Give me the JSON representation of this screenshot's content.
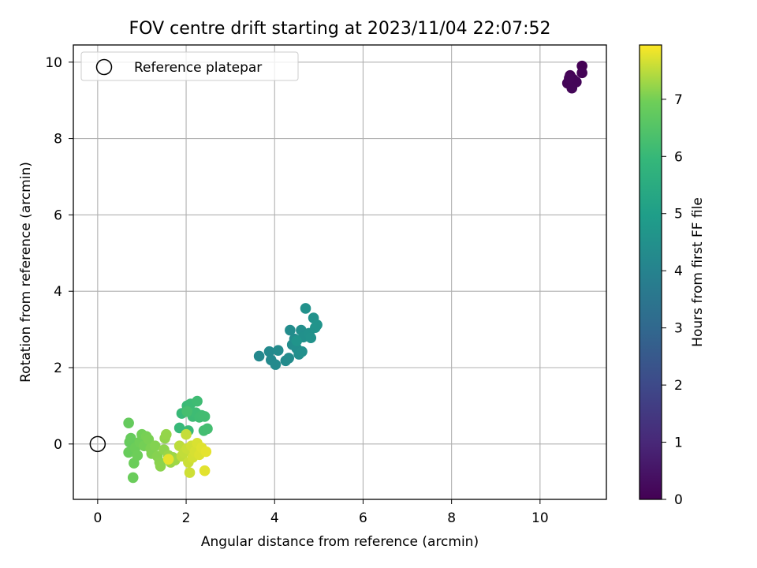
{
  "chart_data": {
    "type": "scatter",
    "title": "FOV centre drift starting at 2023/11/04 22:07:52",
    "xlabel": "Angular distance from reference (arcmin)",
    "ylabel": "Rotation from reference (arcmin)",
    "xlim": [
      -0.55,
      11.5
    ],
    "ylim": [
      -1.45,
      10.45
    ],
    "xticks": [
      "0",
      "2",
      "4",
      "6",
      "8",
      "10"
    ],
    "yticks": [
      "0",
      "2",
      "4",
      "6",
      "8",
      "10"
    ],
    "grid": true,
    "legend": {
      "placement": "top-left",
      "entries": [
        "Reference platepar"
      ]
    },
    "reference_point": {
      "x": 0,
      "y": 0
    },
    "colorbar": {
      "label": "Hours from first FF file",
      "range": [
        0,
        7.95
      ],
      "ticks": [
        "0",
        "1",
        "2",
        "3",
        "4",
        "5",
        "6",
        "7"
      ],
      "colormap": "viridis"
    },
    "series": [
      {
        "points": [
          {
            "x": 10.95,
            "y": 9.9,
            "c": 0.0
          },
          {
            "x": 10.68,
            "y": 9.65,
            "c": 0.02
          },
          {
            "x": 10.75,
            "y": 9.55,
            "c": 0.04
          },
          {
            "x": 10.95,
            "y": 9.72,
            "c": 0.06
          },
          {
            "x": 10.62,
            "y": 9.45,
            "c": 0.08
          },
          {
            "x": 10.82,
            "y": 9.48,
            "c": 0.1
          },
          {
            "x": 10.72,
            "y": 9.32,
            "c": 0.12
          },
          {
            "x": 10.66,
            "y": 9.58,
            "c": 0.14
          },
          {
            "x": 3.65,
            "y": 2.3,
            "c": 4.2
          },
          {
            "x": 3.88,
            "y": 2.42,
            "c": 4.22
          },
          {
            "x": 3.92,
            "y": 2.2,
            "c": 4.24
          },
          {
            "x": 4.02,
            "y": 2.08,
            "c": 4.26
          },
          {
            "x": 4.08,
            "y": 2.45,
            "c": 4.28
          },
          {
            "x": 4.25,
            "y": 2.18,
            "c": 4.3
          },
          {
            "x": 4.32,
            "y": 2.25,
            "c": 4.32
          },
          {
            "x": 4.35,
            "y": 2.98,
            "c": 4.34
          },
          {
            "x": 4.4,
            "y": 2.6,
            "c": 4.36
          },
          {
            "x": 4.45,
            "y": 2.75,
            "c": 4.38
          },
          {
            "x": 4.5,
            "y": 2.5,
            "c": 4.4
          },
          {
            "x": 4.55,
            "y": 2.35,
            "c": 4.42
          },
          {
            "x": 4.6,
            "y": 2.98,
            "c": 4.44
          },
          {
            "x": 4.62,
            "y": 2.42,
            "c": 4.46
          },
          {
            "x": 4.65,
            "y": 2.8,
            "c": 4.48
          },
          {
            "x": 4.7,
            "y": 3.55,
            "c": 4.5
          },
          {
            "x": 4.78,
            "y": 2.9,
            "c": 4.52
          },
          {
            "x": 4.82,
            "y": 2.78,
            "c": 4.54
          },
          {
            "x": 4.88,
            "y": 3.3,
            "c": 4.56
          },
          {
            "x": 4.92,
            "y": 3.05,
            "c": 4.58
          },
          {
            "x": 4.96,
            "y": 3.12,
            "c": 4.6
          },
          {
            "x": 4.5,
            "y": 2.7,
            "c": 4.62
          },
          {
            "x": 1.85,
            "y": 0.42,
            "c": 6.0
          },
          {
            "x": 1.9,
            "y": 0.8,
            "c": 6.02
          },
          {
            "x": 2.02,
            "y": 1.0,
            "c": 6.04
          },
          {
            "x": 2.05,
            "y": 0.35,
            "c": 6.06
          },
          {
            "x": 2.1,
            "y": 1.05,
            "c": 6.08
          },
          {
            "x": 2.15,
            "y": 0.72,
            "c": 6.1
          },
          {
            "x": 2.22,
            "y": 0.82,
            "c": 6.12
          },
          {
            "x": 2.25,
            "y": 1.12,
            "c": 6.14
          },
          {
            "x": 2.3,
            "y": 0.7,
            "c": 6.16
          },
          {
            "x": 2.35,
            "y": 0.75,
            "c": 6.18
          },
          {
            "x": 2.42,
            "y": 0.72,
            "c": 6.2
          },
          {
            "x": 2.4,
            "y": 0.35,
            "c": 6.22
          },
          {
            "x": 2.48,
            "y": 0.4,
            "c": 6.24
          },
          {
            "x": 2.02,
            "y": 0.85,
            "c": 6.26
          },
          {
            "x": 0.7,
            "y": 0.55,
            "c": 6.8
          },
          {
            "x": 0.72,
            "y": 0.05,
            "c": 6.82
          },
          {
            "x": 0.75,
            "y": 0.15,
            "c": 6.84
          },
          {
            "x": 0.7,
            "y": -0.22,
            "c": 6.86
          },
          {
            "x": 0.8,
            "y": -0.88,
            "c": 6.88
          },
          {
            "x": 0.82,
            "y": -0.5,
            "c": 6.9
          },
          {
            "x": 0.85,
            "y": -0.1,
            "c": 6.92
          },
          {
            "x": 0.9,
            "y": -0.3,
            "c": 6.94
          },
          {
            "x": 0.95,
            "y": 0.05,
            "c": 6.96
          },
          {
            "x": 1.0,
            "y": 0.25,
            "c": 6.98
          },
          {
            "x": 1.05,
            "y": -0.05,
            "c": 7.0
          },
          {
            "x": 1.1,
            "y": 0.2,
            "c": 7.02
          },
          {
            "x": 1.15,
            "y": 0.12,
            "c": 7.04
          },
          {
            "x": 1.2,
            "y": -0.12,
            "c": 7.06
          },
          {
            "x": 1.22,
            "y": -0.25,
            "c": 7.08
          },
          {
            "x": 1.3,
            "y": -0.05,
            "c": 7.1
          },
          {
            "x": 1.35,
            "y": -0.32,
            "c": 7.12
          },
          {
            "x": 1.4,
            "y": -0.48,
            "c": 7.14
          },
          {
            "x": 1.42,
            "y": -0.58,
            "c": 7.16
          },
          {
            "x": 1.5,
            "y": -0.15,
            "c": 7.18
          },
          {
            "x": 1.52,
            "y": 0.15,
            "c": 7.2
          },
          {
            "x": 1.55,
            "y": 0.25,
            "c": 7.22
          },
          {
            "x": 1.6,
            "y": -0.3,
            "c": 7.24
          },
          {
            "x": 1.65,
            "y": -0.48,
            "c": 7.26
          },
          {
            "x": 1.7,
            "y": -0.35,
            "c": 7.28
          },
          {
            "x": 1.75,
            "y": -0.42,
            "c": 7.3
          },
          {
            "x": 1.85,
            "y": -0.05,
            "c": 7.5
          },
          {
            "x": 1.9,
            "y": -0.32,
            "c": 7.52
          },
          {
            "x": 1.95,
            "y": -0.22,
            "c": 7.54
          },
          {
            "x": 2.0,
            "y": 0.25,
            "c": 7.56
          },
          {
            "x": 2.02,
            "y": -0.12,
            "c": 7.58
          },
          {
            "x": 2.05,
            "y": -0.48,
            "c": 7.6
          },
          {
            "x": 2.08,
            "y": -0.75,
            "c": 7.62
          },
          {
            "x": 2.12,
            "y": -0.05,
            "c": 7.64
          },
          {
            "x": 2.15,
            "y": -0.35,
            "c": 7.66
          },
          {
            "x": 2.2,
            "y": -0.2,
            "c": 7.68
          },
          {
            "x": 2.25,
            "y": 0.02,
            "c": 7.7
          },
          {
            "x": 2.3,
            "y": -0.28,
            "c": 7.72
          },
          {
            "x": 2.35,
            "y": -0.1,
            "c": 7.74
          },
          {
            "x": 2.42,
            "y": -0.7,
            "c": 7.76
          },
          {
            "x": 2.45,
            "y": -0.2,
            "c": 7.78
          },
          {
            "x": 1.6,
            "y": -0.4,
            "c": 7.8
          }
        ]
      }
    ]
  }
}
